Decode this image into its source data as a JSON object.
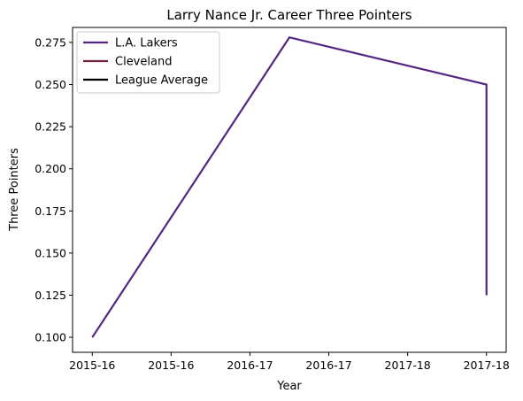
{
  "chart_data": {
    "type": "line",
    "title": "Larry Nance Jr. Career Three Pointers",
    "xlabel": "Year",
    "ylabel": "Three Pointers",
    "x_ticks": [
      {
        "pos": 0.0,
        "label": "2015-16"
      },
      {
        "pos": 0.5,
        "label": "2015-16"
      },
      {
        "pos": 1.0,
        "label": "2016-17"
      },
      {
        "pos": 1.5,
        "label": "2016-17"
      },
      {
        "pos": 2.0,
        "label": "2017-18"
      },
      {
        "pos": 2.5,
        "label": "2017-18"
      }
    ],
    "xlim": [
      -0.125,
      2.625
    ],
    "ylim": [
      0.0911,
      0.2839
    ],
    "y_ticks": [
      0.1,
      0.125,
      0.15,
      0.175,
      0.2,
      0.225,
      0.25,
      0.275
    ],
    "y_tick_labels": [
      "0.100",
      "0.125",
      "0.150",
      "0.175",
      "0.200",
      "0.225",
      "0.250",
      "0.275"
    ],
    "series": [
      {
        "name": "L.A. Lakers",
        "color": "#552583",
        "points": [
          [
            0.0,
            0.1
          ],
          [
            1.25,
            0.278
          ],
          [
            2.5,
            0.25
          ],
          [
            2.5,
            0.125
          ]
        ]
      },
      {
        "name": "Cleveland",
        "color": "#6f263d",
        "points": []
      },
      {
        "name": "League Average",
        "color": "#000000",
        "points": []
      }
    ],
    "legend_position": "top-left",
    "grid": false
  }
}
